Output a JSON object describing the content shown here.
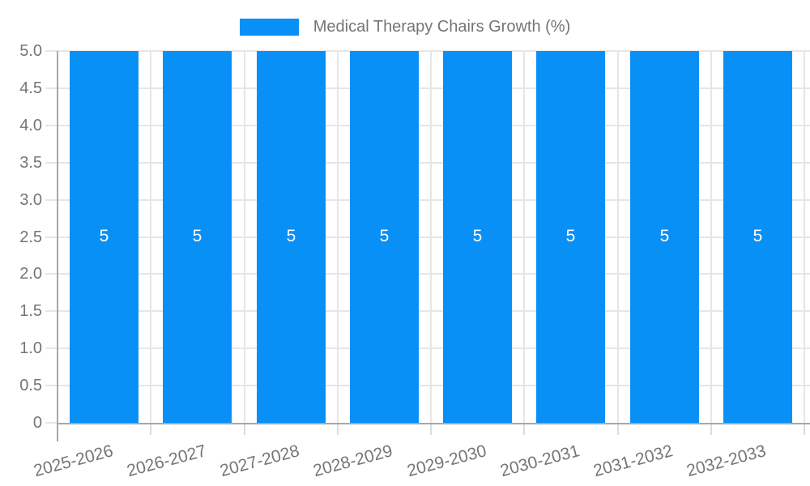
{
  "chart_data": {
    "type": "bar",
    "title": "Medical Therapy Chairs Growth (%)",
    "categories": [
      "2025-2026",
      "2026-2027",
      "2027-2028",
      "2028-2029",
      "2029-2030",
      "2030-2031",
      "2031-2032",
      "2032-2033"
    ],
    "values": [
      5,
      5,
      5,
      5,
      5,
      5,
      5,
      5
    ],
    "bar_labels": [
      "5",
      "5",
      "5",
      "5",
      "5",
      "5",
      "5",
      "5"
    ],
    "xlabel": "",
    "ylabel": "",
    "ylim": [
      0,
      5
    ],
    "ytick_labels": [
      "0",
      "0.5",
      "1.0",
      "1.5",
      "2.0",
      "2.5",
      "3.0",
      "3.5",
      "4.0",
      "4.5",
      "5.0"
    ],
    "legend_position": "top-center",
    "grid": "both",
    "x_label_rotation_deg": -15
  },
  "colors": {
    "bar": "#0990f7",
    "legend_swatch": "#0990f7",
    "text": "#757575",
    "bar_label_text": "#ffffff",
    "gridline": "#e6e6e6",
    "axis_line": "#a8a8a8",
    "tick": "#dcdcdc",
    "background": "#ffffff"
  }
}
